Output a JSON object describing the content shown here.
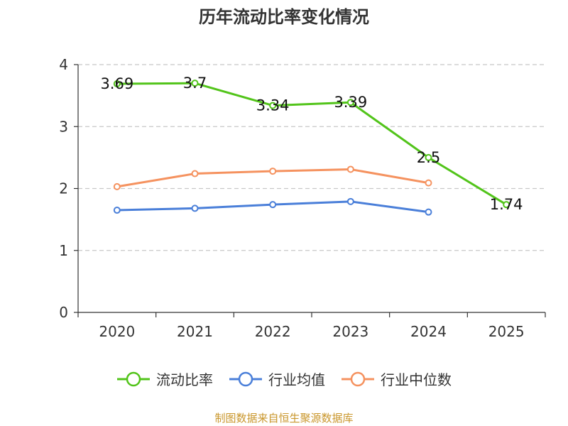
{
  "chart_data": {
    "type": "line",
    "title": "历年流动比率变化情况",
    "categories": [
      "2020",
      "2021",
      "2022",
      "2023",
      "2024",
      "2025"
    ],
    "ylim": [
      0,
      4
    ],
    "yticks": [
      0,
      1,
      2,
      3,
      4
    ],
    "grid": true,
    "legend_position": "bottom",
    "series": [
      {
        "name": "流动比率",
        "color": "#52c41a",
        "values": [
          3.69,
          3.7,
          3.34,
          3.39,
          2.5,
          1.74
        ],
        "labels": [
          "3.69",
          "3.7",
          "3.34",
          "3.39",
          "2.5",
          "1.74"
        ]
      },
      {
        "name": "行业均值",
        "color": "#4a7fd9",
        "values": [
          1.65,
          1.68,
          1.74,
          1.79,
          1.62,
          null
        ]
      },
      {
        "name": "行业中位数",
        "color": "#f5925f",
        "values": [
          2.03,
          2.24,
          2.28,
          2.31,
          2.09,
          null
        ]
      }
    ]
  },
  "source": "制图数据来自恒生聚源数据库"
}
